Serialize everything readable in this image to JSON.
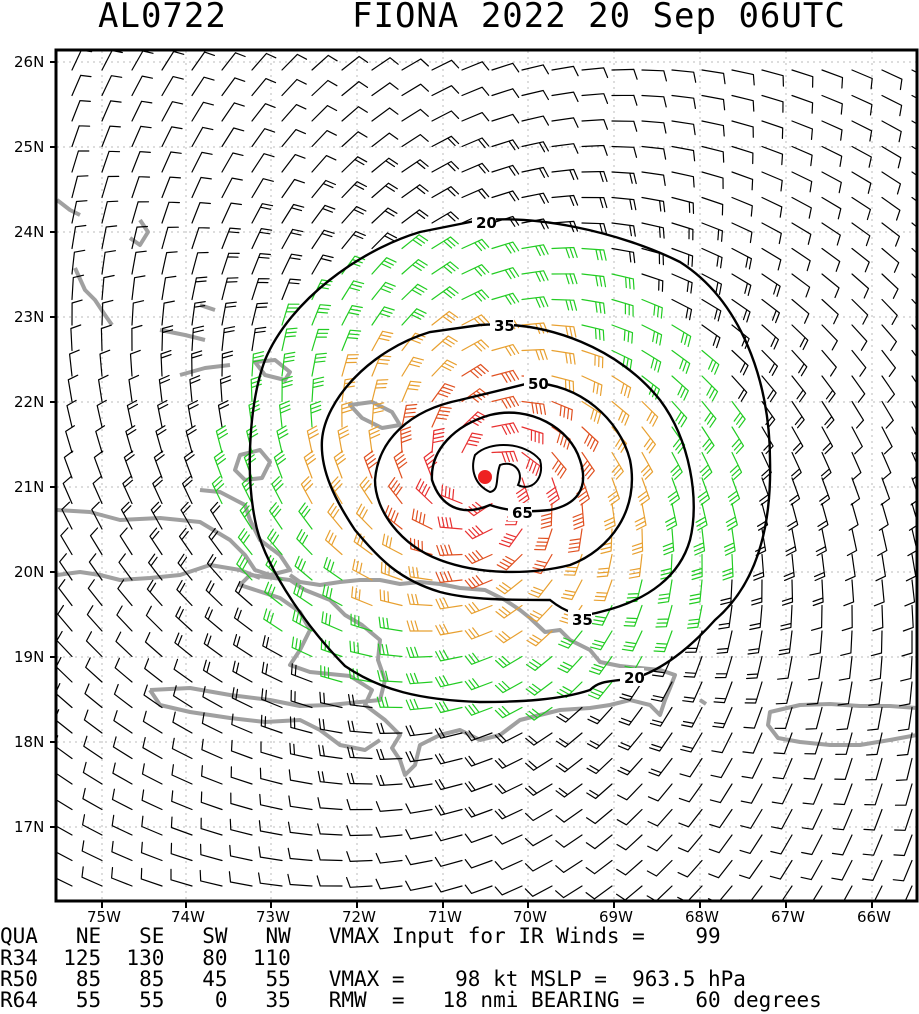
{
  "header": {
    "storm_id": "AL0722",
    "storm_title": "FIONA 2022 20 Sep 06UTC"
  },
  "map": {
    "lat_labels": [
      "26N",
      "25N",
      "24N",
      "23N",
      "22N",
      "21N",
      "20N",
      "19N",
      "18N",
      "17N"
    ],
    "lon_labels": [
      "75W",
      "74W",
      "73W",
      "72W",
      "71W",
      "70W",
      "69W",
      "68W",
      "67W",
      "66W"
    ],
    "contour_labels": [
      "20",
      "35",
      "50",
      "65",
      "35",
      "20"
    ],
    "colors": {
      "barb_outer": "#000000",
      "barb_34kt": "#22cc22",
      "barb_50kt": "#e8a030",
      "barb_64kt": "#e05020",
      "barb_core": "#e83030",
      "coast": "#a0a0a0",
      "center_dot": "#ee2222"
    }
  },
  "table": {
    "row_qua": "QUA   NE   SE   SW   NW   VMAX Input for IR Winds =    99",
    "row_r34": "R34  125  130   80  110",
    "row_r50": "R50   85   85   45   55   VMAX =    98 kt MSLP =  963.5 hPa",
    "row_r64": "R64   55   55    0   35   RMW  =   18 nmi BEARING =    60 degrees"
  }
}
